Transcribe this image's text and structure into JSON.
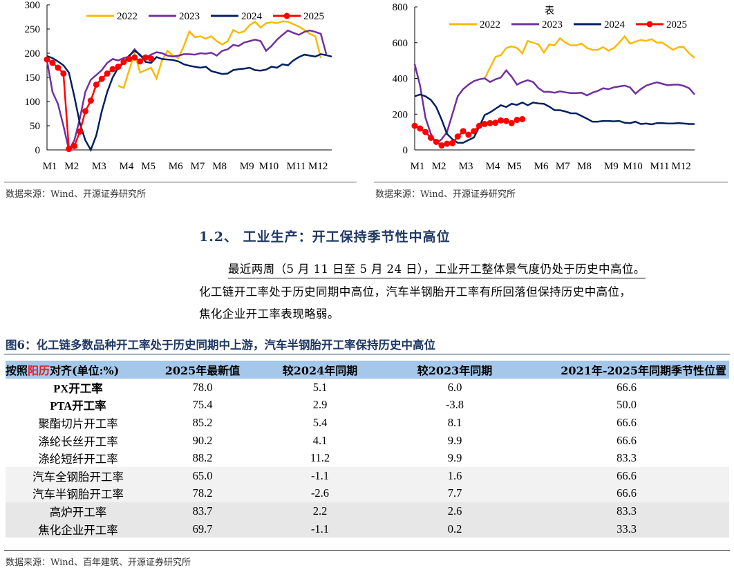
{
  "charts_source": "数据来源：Wind、开源证券研究所",
  "chart_data": [
    {
      "type": "line",
      "title": "",
      "ylim": [
        0,
        300
      ],
      "yticks": [
        0,
        50,
        100,
        150,
        200,
        250,
        300
      ],
      "xunit": "week",
      "xticks": [
        {
          "label": "M1",
          "w": 1
        },
        {
          "label": "M2",
          "w": 5
        },
        {
          "label": "M3",
          "w": 10
        },
        {
          "label": "M4",
          "w": 15
        },
        {
          "label": "M5",
          "w": 19
        },
        {
          "label": "M6",
          "w": 24
        },
        {
          "label": "M7",
          "w": 28
        },
        {
          "label": "M8",
          "w": 32
        },
        {
          "label": "M9",
          "w": 37
        },
        {
          "label": "M10",
          "w": 41
        },
        {
          "label": "M11",
          "w": 46
        },
        {
          "label": "M12",
          "w": 50
        }
      ],
      "series": [
        {
          "name": "2022",
          "color": "#fbb900",
          "start": 14,
          "values": [
            133,
            128,
            165,
            200,
            160,
            165,
            170,
            148,
            185,
            205,
            195,
            190,
            215,
            245,
            233,
            235,
            230,
            235,
            225,
            218,
            225,
            248,
            242,
            245,
            258,
            265,
            253,
            262,
            264,
            262,
            266,
            265,
            260,
            255,
            248,
            240,
            235,
            190
          ]
        },
        {
          "name": "2023",
          "color": "#7030a0",
          "start": 1,
          "values": [
            185,
            120,
            95,
            50,
            0,
            20,
            65,
            120,
            145,
            155,
            165,
            180,
            188,
            185,
            190,
            193,
            208,
            195,
            190,
            197,
            202,
            200,
            195,
            193,
            195,
            198,
            198,
            197,
            200,
            199,
            201,
            195,
            205,
            208,
            217,
            215,
            222,
            225,
            228,
            225,
            205,
            215,
            228,
            238,
            247,
            242,
            238,
            244,
            247,
            244,
            240,
            198
          ]
        },
        {
          "name": "2024",
          "color": "#002060",
          "start": 1,
          "values": [
            194,
            190,
            183,
            175,
            160,
            110,
            55,
            20,
            0,
            30,
            80,
            120,
            150,
            170,
            180,
            195,
            205,
            197,
            182,
            180,
            192,
            188,
            187,
            186,
            183,
            177,
            174,
            172,
            170,
            172,
            163,
            160,
            157,
            158,
            165,
            167,
            168,
            170,
            165,
            164,
            166,
            172,
            170,
            177,
            175,
            185,
            192,
            197,
            195,
            193,
            198,
            196,
            193
          ]
        },
        {
          "name": "2025",
          "color": "#ff0000",
          "markers": true,
          "start": 1,
          "values": [
            187,
            180,
            170,
            158,
            2,
            8,
            38,
            80,
            102,
            135,
            147,
            158,
            167,
            172,
            182,
            188,
            191,
            183,
            191,
            189
          ]
        }
      ]
    },
    {
      "type": "line",
      "title": "表",
      "ylim": [
        0,
        800
      ],
      "yticks": [
        0,
        200,
        400,
        600,
        800
      ],
      "xunit": "week",
      "xticks": [
        {
          "label": "M1",
          "w": 1
        },
        {
          "label": "M2",
          "w": 5
        },
        {
          "label": "M3",
          "w": 10
        },
        {
          "label": "M4",
          "w": 15
        },
        {
          "label": "M5",
          "w": 19
        },
        {
          "label": "M6",
          "w": 24
        },
        {
          "label": "M7",
          "w": 28
        },
        {
          "label": "M8",
          "w": 32
        },
        {
          "label": "M9",
          "w": 37
        },
        {
          "label": "M10",
          "w": 41
        },
        {
          "label": "M11",
          "w": 46
        },
        {
          "label": "M12",
          "w": 50
        }
      ],
      "series": [
        {
          "name": "2022",
          "color": "#fbb900",
          "start": 14,
          "values": [
            400,
            460,
            520,
            530,
            570,
            580,
            570,
            540,
            610,
            600,
            590,
            545,
            590,
            585,
            625,
            600,
            585,
            585,
            595,
            570,
            560,
            560,
            575,
            555,
            570,
            600,
            635,
            595,
            605,
            615,
            610,
            620,
            600,
            600,
            580,
            560,
            575,
            575,
            540,
            515
          ]
        },
        {
          "name": "2023",
          "color": "#7030a0",
          "start": 1,
          "values": [
            480,
            360,
            180,
            90,
            35,
            60,
            100,
            200,
            300,
            340,
            365,
            385,
            395,
            400,
            380,
            395,
            405,
            445,
            410,
            365,
            380,
            390,
            380,
            345,
            325,
            325,
            320,
            328,
            322,
            318,
            318,
            320,
            305,
            320,
            330,
            345,
            340,
            350,
            355,
            360,
            350,
            315,
            340,
            360,
            370,
            378,
            370,
            362,
            365,
            365,
            358,
            345,
            310
          ]
        },
        {
          "name": "2024",
          "color": "#002060",
          "start": 1,
          "values": [
            300,
            310,
            300,
            280,
            240,
            170,
            90,
            60,
            40,
            40,
            55,
            70,
            130,
            195,
            210,
            230,
            250,
            240,
            258,
            252,
            265,
            250,
            265,
            260,
            258,
            242,
            222,
            222,
            215,
            205,
            205,
            190,
            175,
            158,
            158,
            162,
            162,
            160,
            162,
            152,
            150,
            158,
            145,
            148,
            143,
            150,
            150,
            148,
            148,
            150,
            148,
            145,
            145
          ]
        },
        {
          "name": "2025",
          "color": "#ff0000",
          "markers": true,
          "start": 1,
          "values": [
            135,
            120,
            100,
            68,
            45,
            25,
            35,
            38,
            75,
            105,
            85,
            105,
            135,
            145,
            150,
            152,
            165,
            162,
            150,
            168,
            172
          ]
        }
      ]
    }
  ],
  "section": {
    "heading": "1.2、 工业生产：开工保持季节性中高位",
    "lines": [
      "最近两周（5 月 11 日至 5 月 24 日），工业开工整体景气度仍处于历史中高位。",
      "化工链开工率处于历史同期中高位，汽车半钢胎开工率有所回落但保持历史中高位，",
      "焦化企业开工率表现略弱。"
    ]
  },
  "figure": {
    "title": "图6：化工链多数品种开工率处于历史同期中上游，汽车半钢胎开工率保持历史中高位",
    "header": {
      "c1a": "按照",
      "c1b": "阳历",
      "c1c": "对齐(单位:%)",
      "c2": "2025年最新值",
      "c3": "较2024年同期",
      "c4": "较2023年同期",
      "c5": "2021年-2025年同期季节性位置"
    },
    "rows": [
      [
        "PX开工率",
        "78.0",
        "5.1",
        "6.0",
        "66.6"
      ],
      [
        "PTA开工率",
        "75.4",
        "2.9",
        "-3.8",
        "50.0"
      ],
      [
        "聚酯切片开工率",
        "85.2",
        "5.4",
        "8.1",
        "66.6"
      ],
      [
        "涤纶长丝开工率",
        "90.2",
        "4.1",
        "9.9",
        "66.6"
      ],
      [
        "涤纶短纤开工率",
        "88.2",
        "11.2",
        "9.9",
        "83.3"
      ],
      [
        "汽车全钢胎开工率",
        "65.0",
        "-1.1",
        "1.6",
        "66.6"
      ],
      [
        "汽车半钢胎开工率",
        "78.2",
        "-2.6",
        "7.7",
        "66.6"
      ],
      [
        "高炉开工率",
        "83.7",
        "2.2",
        "2.6",
        "83.3"
      ],
      [
        "焦化企业开工率",
        "69.7",
        "-1.1",
        "0.2",
        "33.3"
      ]
    ],
    "source": "数据来源：Wind、百年建筑、开源证券研究所"
  }
}
